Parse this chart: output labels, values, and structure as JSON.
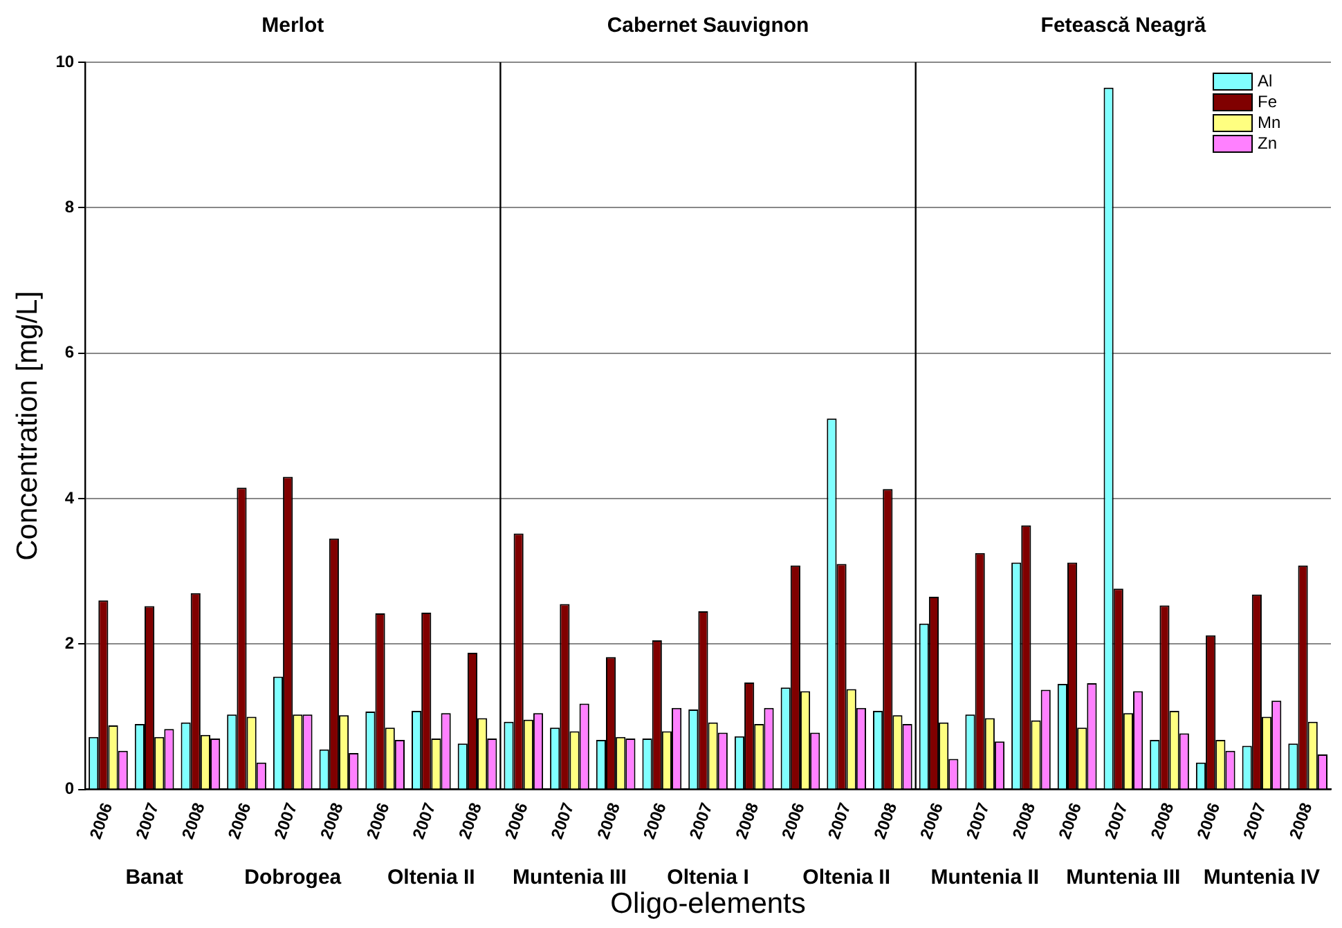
{
  "chart_data": {
    "type": "bar",
    "xlabel": "Oligo-elements",
    "ylabel": "Concentration [mg/L]",
    "categories": [
      "2006",
      "2007",
      "2008",
      "2006",
      "2007",
      "2008",
      "2006",
      "2007",
      "2008",
      "2006",
      "2007",
      "2008",
      "2006",
      "2007",
      "2008",
      "2006",
      "2007",
      "2008",
      "2006",
      "2007",
      "2008",
      "2006",
      "2007",
      "2008",
      "2006",
      "2007",
      "2008"
    ],
    "series": [
      {
        "name": "Al",
        "color": "#80ffff",
        "values": [
          0.72,
          0.9,
          0.92,
          1.03,
          1.55,
          0.55,
          1.07,
          1.08,
          0.63,
          0.93,
          0.85,
          0.68,
          0.7,
          1.1,
          0.73,
          1.4,
          5.1,
          1.08,
          2.28,
          1.03,
          3.12,
          1.45,
          9.65,
          0.68,
          0.37,
          0.6,
          0.63
        ]
      },
      {
        "name": "Fe",
        "color": "#800000",
        "values": [
          2.6,
          2.52,
          2.7,
          4.15,
          4.3,
          3.45,
          2.42,
          2.43,
          1.88,
          3.52,
          2.55,
          1.82,
          2.05,
          2.45,
          1.47,
          3.08,
          3.1,
          4.13,
          2.65,
          3.25,
          3.63,
          3.12,
          2.76,
          2.53,
          2.12,
          2.68,
          3.08
        ]
      },
      {
        "name": "Mn",
        "color": "#ffff80",
        "values": [
          0.88,
          0.72,
          0.75,
          1.0,
          1.03,
          1.02,
          0.85,
          0.7,
          0.98,
          0.96,
          0.8,
          0.72,
          0.8,
          0.92,
          0.9,
          1.35,
          1.38,
          1.02,
          0.92,
          0.98,
          0.95,
          0.85,
          1.05,
          1.08,
          0.68,
          1.0,
          0.93
        ]
      },
      {
        "name": "Zn",
        "color": "#ff80ff",
        "values": [
          0.53,
          0.83,
          0.7,
          0.37,
          1.03,
          0.5,
          0.68,
          1.05,
          0.7,
          1.05,
          1.18,
          0.7,
          1.12,
          0.78,
          1.12,
          0.78,
          1.12,
          0.9,
          0.42,
          0.66,
          1.37,
          1.46,
          1.35,
          0.77,
          0.53,
          1.22,
          0.48
        ]
      }
    ],
    "ylim": [
      0,
      10
    ],
    "yticks": [
      0,
      2,
      4,
      6,
      8,
      10
    ],
    "grid": "y",
    "legend": "top right",
    "annotations": [
      "Merlot",
      "Cabernet Sauvignon",
      "Fetească Neagră",
      "Banat",
      "Dobrogea",
      "Oltenia II",
      "Muntenia III",
      "Oltenia I",
      "Oltenia II",
      "Muntenia II",
      "Muntenia III",
      "Muntenia IV"
    ]
  }
}
